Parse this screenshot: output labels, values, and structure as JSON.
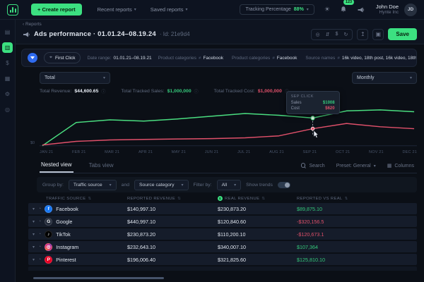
{
  "icons": {
    "back_chevron": "‹",
    "dropdown_caret": "▾",
    "sun": "☀",
    "sort": "⇅",
    "info": "ⓘ",
    "eye": "◎",
    "swap": "⇵",
    "dollar": "$",
    "refresh": "↻",
    "share": "↥",
    "duplicate": "▣",
    "expand_caret": "▾",
    "clock": "◔",
    "check": "✓",
    "columns": "▦",
    "target": "⌖"
  },
  "colors": {
    "accent_green": "#3ce081",
    "green_text": "#35c97b",
    "red_text": "#e0506a",
    "sales_line": "#4ade80",
    "cost_line": "#e0506a",
    "filter_blue": "#2f6bf0"
  },
  "topbar": {
    "create_report": "+ Create report",
    "nav": [
      {
        "label": "Recent reports"
      },
      {
        "label": "Saved reports"
      }
    ],
    "tracking": {
      "label": "Tracking Percentage",
      "value": "88%"
    },
    "notifications_badge": "123",
    "user": {
      "name": "John Doe",
      "company": "Hynte Inc",
      "initials": "JD"
    }
  },
  "sidebar": {
    "items": [
      {
        "name": "overview",
        "glyph": "▤",
        "active": false
      },
      {
        "name": "reports",
        "glyph": "▥",
        "active": true
      },
      {
        "name": "billing",
        "glyph": "$",
        "active": false
      },
      {
        "name": "sources",
        "glyph": "▦",
        "active": false
      },
      {
        "name": "settings",
        "glyph": "⚙",
        "active": false
      },
      {
        "name": "help",
        "glyph": "◎",
        "active": false
      }
    ]
  },
  "header": {
    "breadcrumb": "Reports",
    "title": "Ads performance · 01.01.24–08.19.24",
    "id_label": "· Id: 21e9d4",
    "save_label": "Save"
  },
  "filters": {
    "model_chip": "First Click",
    "date_range_label": "Date range:",
    "date_range": "01.01.21–08.19.21",
    "items": [
      {
        "label": "Product categories",
        "op": "≠",
        "value": "Facebook"
      },
      {
        "label": "Product categories",
        "op": "≠",
        "value": "Facebook"
      },
      {
        "label": "Source names",
        "op": "≠",
        "value": "16k video, 18th post, 16k video, 18th post, 16k vide..."
      }
    ]
  },
  "chart_panel": {
    "metric_select": "Total",
    "granularity_select": "Monthly",
    "stats": [
      {
        "label": "Total Revenue:",
        "value": "$44,600.65",
        "tone": ""
      },
      {
        "label": "Total Tracked Sales:",
        "value": "$1,000,000",
        "tone": "green"
      },
      {
        "label": "Total Tracked Cost:",
        "value": "$1,000,000",
        "tone": "red"
      }
    ]
  },
  "chart_data": {
    "type": "line",
    "x": [
      "JAN 21",
      "FEB 21",
      "MAR 21",
      "APR 21",
      "MAY 21",
      "JUN 21",
      "JUL 21",
      "AUG 21",
      "SEP 21",
      "OCT 21",
      "NOV 21",
      "DEC 21"
    ],
    "series": [
      {
        "name": "Sales",
        "color": "#4ade80",
        "values": [
          0,
          845,
          940,
          895,
          975,
          1070,
          1170,
          1105,
          1008,
          1265,
          1300,
          1235
        ]
      },
      {
        "name": "Cost",
        "color": "#e0506a",
        "values": [
          30,
          160,
          210,
          230,
          245,
          260,
          290,
          360,
          620,
          810,
          690,
          620
        ]
      }
    ],
    "ylim": [
      0,
      1650
    ],
    "y_zero_label": "$0",
    "grid": false,
    "legend": "none",
    "highlight_index": 8,
    "highlight_tooltip": {
      "title": "SEP CLICK",
      "rows": [
        {
          "label": "Sales",
          "value": "$1008",
          "tone": "green"
        },
        {
          "label": "Cost",
          "value": "$620",
          "tone": "red"
        }
      ]
    }
  },
  "table": {
    "tabs": [
      {
        "label": "Nested view"
      },
      {
        "label": "Tabs view"
      }
    ],
    "tools": {
      "search": "Search",
      "preset": "Preset: General",
      "columns": "Columns"
    },
    "controls": {
      "group_by_label": "Group by:",
      "group_by": "Traffic source",
      "and_label": "and",
      "group_by2": "Source category",
      "filter_by_label": "Filter by:",
      "filter_by": "All",
      "show_trends_label": "Show trends"
    },
    "columns": [
      "Traffic source",
      "Reported revenue",
      "Real revenue",
      "Reported vs real"
    ],
    "rows": [
      {
        "name": "Facebook",
        "icon_glyph": "f",
        "icon_bg": "#1877f2",
        "reported": "$140,997.10",
        "real": "$230,873.20",
        "diff": "$89,875.10",
        "trend": "up"
      },
      {
        "name": "Google",
        "icon_glyph": "G",
        "icon_bg": "#232b3a",
        "reported": "$440,997.10",
        "real": "$120,840.60",
        "diff": "-$320,156.5",
        "trend": "down"
      },
      {
        "name": "TikTok",
        "icon_glyph": "♪",
        "icon_bg": "#000000",
        "reported": "$230,873.20",
        "real": "$110,200.10",
        "diff": "-$120,673.1",
        "trend": "down"
      },
      {
        "name": "Instagram",
        "icon_glyph": "◎",
        "icon_bg": "linear-gradient(45deg,#f58529,#dd2a7b,#8134af)",
        "reported": "$232,643.10",
        "real": "$340,007.10",
        "diff": "$107,364",
        "trend": "up"
      },
      {
        "name": "Pinterest",
        "icon_glyph": "P",
        "icon_bg": "#e60023",
        "reported": "$196,006.40",
        "real": "$321,825.60",
        "diff": "$125,810.10",
        "trend": "up"
      }
    ]
  }
}
